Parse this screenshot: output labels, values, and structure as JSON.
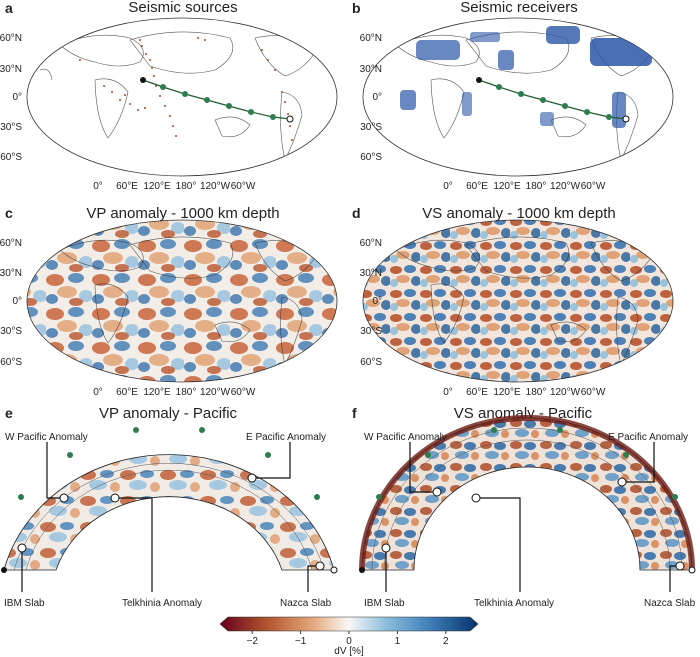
{
  "figure": {
    "panels": [
      {
        "letter": "a",
        "title": "Seismic sources"
      },
      {
        "letter": "b",
        "title": "Seismic receivers"
      },
      {
        "letter": "c",
        "title": "VP anomaly - 1000 km depth"
      },
      {
        "letter": "d",
        "title": "VS anomaly - 1000 km depth"
      },
      {
        "letter": "e",
        "title": "VP anomaly - Pacific"
      },
      {
        "letter": "f",
        "title": "VS anomaly - Pacific"
      }
    ],
    "lat_labels": [
      "60°N",
      "30°N",
      "0°",
      "30°S",
      "60°S"
    ],
    "lon_labels": [
      "0°",
      "60°E",
      "120°E",
      "180°",
      "120°W",
      "60°W"
    ],
    "annotations_e": [
      "W Pacific Anomaly",
      "E Pacific Anomaly",
      "IBM Slab",
      "Telkhinia Anomaly",
      "Nazca Slab"
    ],
    "annotations_f": [
      "W Pacific Anomaly",
      "E Pacific Anomaly",
      "IBM Slab",
      "Telkhinia Anomaly",
      "Nazca Slab"
    ],
    "colorbar": {
      "label": "dV [%]",
      "ticks": [
        "−2",
        "−1",
        "0",
        "1",
        "2"
      ],
      "tick_values": [
        -2,
        -1,
        0,
        1,
        2
      ],
      "range": [
        -2.5,
        2.5
      ],
      "colors": [
        "#67001f",
        "#b2532f",
        "#e3a97c",
        "#f7f7f7",
        "#8fbfdc",
        "#3b7db6",
        "#08306b"
      ]
    }
  }
}
